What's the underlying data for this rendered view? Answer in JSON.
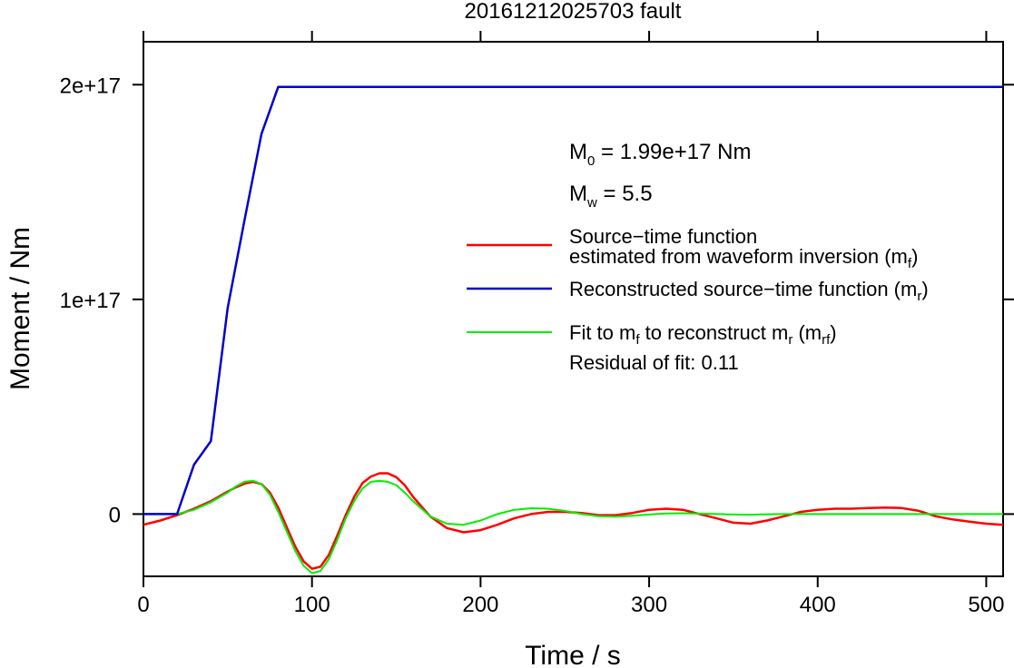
{
  "chart_data": {
    "type": "line",
    "title": "20161212025703 fault",
    "xlabel": "Time / s",
    "ylabel": "Moment / Nm",
    "xlim": [
      0,
      510
    ],
    "ylim": [
      -2.9e+16,
      2.2e+17
    ],
    "x_ticks": [
      0,
      100,
      200,
      300,
      400,
      500
    ],
    "x_tick_labels": [
      "0",
      "100",
      "200",
      "300",
      "400",
      "500"
    ],
    "y_ticks": [
      0,
      1e+17,
      2e+17
    ],
    "y_tick_labels": [
      "0",
      "1e+17",
      "2e+17"
    ],
    "grid": false,
    "legend_position": "right",
    "annotations": {
      "m0": {
        "symbol": "M",
        "sub": "0",
        "text": " = 1.99e+17 Nm"
      },
      "mw": {
        "symbol": "M",
        "sub": "w",
        "text": " = 5.5"
      },
      "residual": "Residual of fit: 0.11"
    },
    "series": [
      {
        "id": "mf",
        "color": "#ff0000",
        "legend": {
          "line1": "Source−time function",
          "line2_pre": "estimated from waveform inversion (m",
          "line2_sub": "f",
          "line2_post": ")"
        },
        "x": [
          0,
          10,
          20,
          30,
          40,
          50,
          55,
          60,
          65,
          70,
          75,
          80,
          85,
          90,
          95,
          100,
          105,
          110,
          115,
          120,
          125,
          130,
          135,
          140,
          145,
          150,
          155,
          160,
          170,
          180,
          190,
          200,
          210,
          220,
          230,
          240,
          250,
          260,
          270,
          280,
          290,
          300,
          310,
          320,
          330,
          340,
          350,
          360,
          370,
          380,
          390,
          400,
          410,
          420,
          430,
          440,
          450,
          460,
          470,
          480,
          490,
          500,
          510
        ],
        "y": [
          -5000000000000000.0,
          -3000000000000000.0,
          -500000000000000.0,
          2500000000000000.0,
          6000000000000000.0,
          1.05e+16,
          1.25e+16,
          1.42e+16,
          1.5e+16,
          1.4e+16,
          1e+16,
          3000000000000000.0,
          -6000000000000000.0,
          -1.5e+16,
          -2.2e+16,
          -2.55e+16,
          -2.45e+16,
          -1.9e+16,
          -1e+16,
          -500000000000000.0,
          8000000000000000.0,
          1.45e+16,
          1.75e+16,
          1.9e+16,
          1.9e+16,
          1.72e+16,
          1.35e+16,
          8000000000000000.0,
          -1000000000000000.0,
          -6500000000000000.0,
          -8500000000000000.0,
          -7500000000000000.0,
          -5000000000000000.0,
          -2000000000000000.0,
          0,
          1000000000000000.0,
          1000000000000000.0,
          500000000000000.0,
          -500000000000000.0,
          -500000000000000.0,
          500000000000000.0,
          2000000000000000.0,
          2500000000000000.0,
          2000000000000000.0,
          0,
          -2000000000000000.0,
          -4000000000000000.0,
          -4500000000000000.0,
          -3000000000000000.0,
          -1000000000000000.0,
          1000000000000000.0,
          2000000000000000.0,
          2500000000000000.0,
          2500000000000000.0,
          2800000000000000.0,
          3000000000000000.0,
          2800000000000000.0,
          1500000000000000.0,
          -1000000000000000.0,
          -2500000000000000.0,
          -3500000000000000.0,
          -4500000000000000.0,
          -5000000000000000.0
        ]
      },
      {
        "id": "mr",
        "color": "#0000cc",
        "legend": {
          "line1_pre": "Reconstructed source−time function (m",
          "line1_sub": "r",
          "line1_post": ")"
        },
        "x": [
          0,
          20,
          30,
          40,
          50,
          60,
          70,
          80,
          510
        ],
        "y": [
          0,
          0,
          2.3e+16,
          3.4e+16,
          9.6e+16,
          1.37e+17,
          1.77e+17,
          1.99e+17,
          1.99e+17
        ]
      },
      {
        "id": "mrf",
        "color": "#00ee00",
        "legend": {
          "line1_pre": "Fit to m",
          "line1_sub1": "f",
          "line1_mid": " to reconstruct m",
          "line1_sub2": "r",
          "line1_mid2": " (m",
          "line1_sub3": "rf",
          "line1_post": ")"
        },
        "x": [
          0,
          20,
          30,
          40,
          50,
          55,
          60,
          65,
          70,
          75,
          80,
          85,
          90,
          95,
          100,
          105,
          110,
          115,
          120,
          125,
          130,
          135,
          140,
          145,
          150,
          155,
          160,
          170,
          180,
          190,
          200,
          210,
          220,
          230,
          240,
          250,
          260,
          270,
          280,
          290,
          300,
          310,
          320,
          330,
          340,
          350,
          360,
          370,
          380,
          390,
          400,
          410,
          420,
          430,
          440,
          450,
          460,
          470,
          480,
          490,
          500,
          510
        ],
        "y": [
          0,
          0,
          2000000000000000.0,
          5500000000000000.0,
          1e+16,
          1.3e+16,
          1.5e+16,
          1.55e+16,
          1.4e+16,
          9000000000000000.0,
          1000000000000000.0,
          -8000000000000000.0,
          -1.7e+16,
          -2.4e+16,
          -2.75e+16,
          -2.65e+16,
          -2.1e+16,
          -1.2e+16,
          -2000000000000000.0,
          6000000000000000.0,
          1.2e+16,
          1.5e+16,
          1.55e+16,
          1.5e+16,
          1.35e+16,
          1e+16,
          6000000000000000.0,
          -1000000000000000.0,
          -4500000000000000.0,
          -5000000000000000.0,
          -3000000000000000.0,
          0,
          2000000000000000.0,
          2700000000000000.0,
          2500000000000000.0,
          1500000000000000.0,
          0,
          -1000000000000000.0,
          -1200000000000000.0,
          -800000000000000.0,
          -200000000000000.0,
          300000000000000.0,
          400000000000000.0,
          200000000000000.0,
          0,
          -200000000000000.0,
          -300000000000000.0,
          -100000000000000.0,
          0,
          0,
          0,
          0,
          0,
          0,
          0,
          0,
          0,
          0,
          0,
          0,
          0,
          0
        ]
      }
    ]
  }
}
